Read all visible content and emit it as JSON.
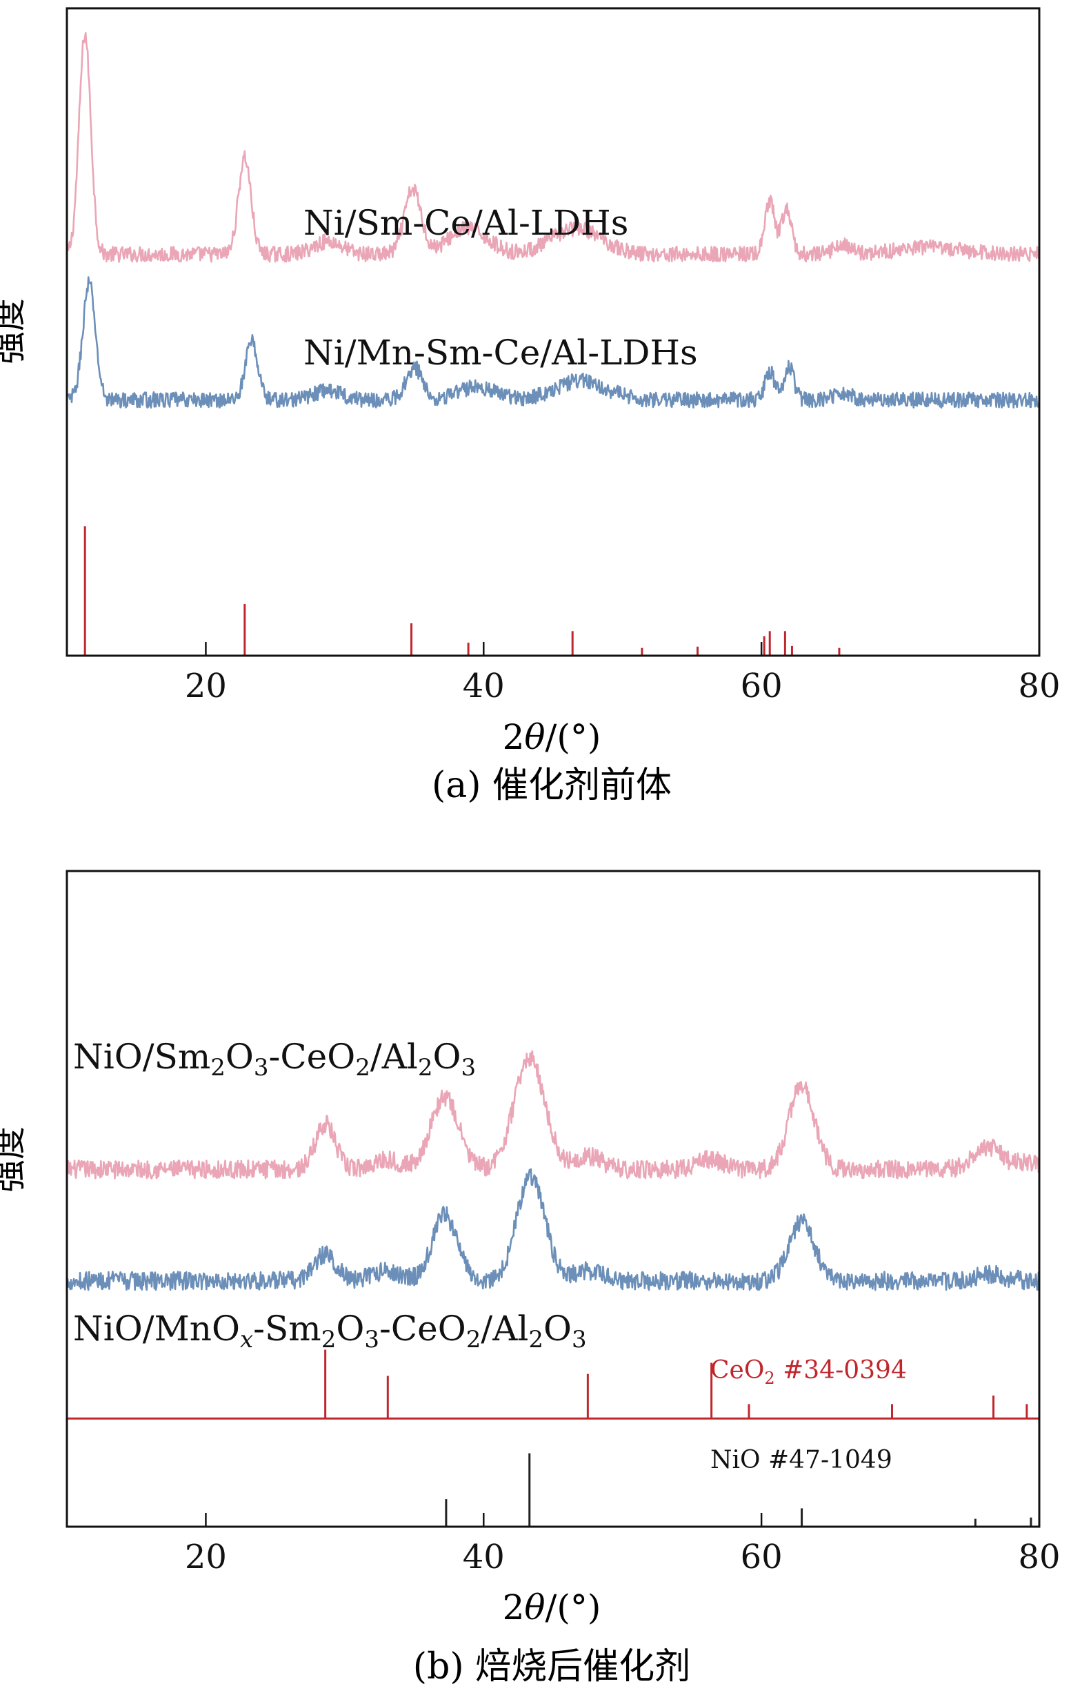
{
  "chart_data": [
    {
      "type": "line",
      "panel_caption": "(a) 催化剂前体",
      "xlabel_prefix": "2",
      "xlabel_theta": "θ",
      "xlabel_suffix": "/(°)",
      "ylabel": "强度",
      "xlim": [
        10,
        80
      ],
      "xticks": [
        20,
        40,
        60,
        80
      ],
      "xtick_labels": [
        "20",
        "40",
        "60",
        "80"
      ],
      "y_ticks_shown": false,
      "grid": false,
      "series": [
        {
          "name": "Ni/Sm-Ce/Al-LDHs",
          "color": "#eaa6b6",
          "baseline": 0.62,
          "noise": 0.012,
          "label_at_x": 29.5,
          "peaks": [
            {
              "x": 11.3,
              "height": 0.34,
              "width": 0.42
            },
            {
              "x": 22.8,
              "height": 0.15,
              "width": 0.45
            },
            {
              "x": 28.8,
              "height": 0.02,
              "width": 1.0
            },
            {
              "x": 34.9,
              "height": 0.1,
              "width": 0.6
            },
            {
              "x": 38.9,
              "height": 0.04,
              "width": 1.4
            },
            {
              "x": 46.7,
              "height": 0.04,
              "width": 1.8
            },
            {
              "x": 60.6,
              "height": 0.08,
              "width": 0.35
            },
            {
              "x": 61.8,
              "height": 0.07,
              "width": 0.35
            },
            {
              "x": 65.8,
              "height": 0.015,
              "width": 0.6
            },
            {
              "x": 72.0,
              "height": 0.01,
              "width": 2.5
            }
          ]
        },
        {
          "name": "Ni/Mn-Sm-Ce/Al-LDHs",
          "color": "#6b8fb8",
          "baseline": 0.395,
          "noise": 0.012,
          "label_at_x": 29.5,
          "peaks": [
            {
              "x": 11.6,
              "height": 0.18,
              "width": 0.45
            },
            {
              "x": 23.3,
              "height": 0.09,
              "width": 0.45
            },
            {
              "x": 28.8,
              "height": 0.015,
              "width": 1.0
            },
            {
              "x": 35.0,
              "height": 0.05,
              "width": 0.6
            },
            {
              "x": 39.5,
              "height": 0.02,
              "width": 1.4
            },
            {
              "x": 47.0,
              "height": 0.03,
              "width": 1.8
            },
            {
              "x": 60.6,
              "height": 0.045,
              "width": 0.35
            },
            {
              "x": 62.0,
              "height": 0.05,
              "width": 0.35
            },
            {
              "x": 65.8,
              "height": 0.012,
              "width": 0.6
            }
          ]
        }
      ],
      "reference_patterns": [
        {
          "name": "",
          "color": "#c0272d",
          "baseline": 0,
          "sticks": [
            {
              "x": 11.3,
              "intensity": 0.2
            },
            {
              "x": 22.8,
              "intensity": 0.08
            },
            {
              "x": 34.8,
              "intensity": 0.05
            },
            {
              "x": 38.9,
              "intensity": 0.02
            },
            {
              "x": 46.4,
              "intensity": 0.038
            },
            {
              "x": 51.4,
              "intensity": 0.012
            },
            {
              "x": 55.4,
              "intensity": 0.014
            },
            {
              "x": 60.2,
              "intensity": 0.03
            },
            {
              "x": 60.6,
              "intensity": 0.038
            },
            {
              "x": 61.7,
              "intensity": 0.038
            },
            {
              "x": 62.2,
              "intensity": 0.015
            },
            {
              "x": 65.6,
              "intensity": 0.012
            }
          ]
        }
      ]
    },
    {
      "type": "line",
      "panel_caption": "(b) 焙烧后催化剂",
      "xlabel_prefix": "2",
      "xlabel_theta": "θ",
      "xlabel_suffix": "/(°)",
      "ylabel": "强度",
      "xlim": [
        10,
        80
      ],
      "xticks": [
        20,
        40,
        60,
        80
      ],
      "xtick_labels": [
        "20",
        "40",
        "60",
        "80"
      ],
      "y_ticks_shown": false,
      "grid": false,
      "series": [
        {
          "name": "NiO/Sm2O3-CeO2/Al2O3",
          "color": "#eaa6b6",
          "baseline": 0.545,
          "noise": 0.014,
          "peaks": [
            {
              "x": 28.6,
              "height": 0.07,
              "width": 0.7
            },
            {
              "x": 33.0,
              "height": 0.015,
              "width": 1.0
            },
            {
              "x": 37.2,
              "height": 0.11,
              "width": 1.0
            },
            {
              "x": 43.3,
              "height": 0.17,
              "width": 1.1
            },
            {
              "x": 47.5,
              "height": 0.02,
              "width": 1.0
            },
            {
              "x": 56.3,
              "height": 0.015,
              "width": 1.0
            },
            {
              "x": 62.9,
              "height": 0.13,
              "width": 0.9
            },
            {
              "x": 76.3,
              "height": 0.035,
              "width": 1.0
            },
            {
              "x": 79.1,
              "height": 0.01,
              "width": 0.8
            }
          ]
        },
        {
          "name": "NiO/MnOx-Sm2O3-CeO2/Al2O3",
          "color": "#6b8fb8",
          "baseline": 0.375,
          "noise": 0.014,
          "peaks": [
            {
              "x": 28.6,
              "height": 0.04,
              "width": 0.8
            },
            {
              "x": 33.0,
              "height": 0.015,
              "width": 1.0
            },
            {
              "x": 37.2,
              "height": 0.1,
              "width": 0.9
            },
            {
              "x": 43.4,
              "height": 0.16,
              "width": 1.0
            },
            {
              "x": 47.5,
              "height": 0.015,
              "width": 1.0
            },
            {
              "x": 62.9,
              "height": 0.09,
              "width": 0.9
            },
            {
              "x": 76.5,
              "height": 0.01,
              "width": 1.0
            }
          ]
        }
      ],
      "reference_patterns": [
        {
          "name": "CeO2 #34-0394",
          "color": "#c0272d",
          "baseline": 0.165,
          "sticks": [
            {
              "x": 28.6,
              "intensity": 0.105
            },
            {
              "x": 33.1,
              "intensity": 0.065
            },
            {
              "x": 47.5,
              "intensity": 0.068
            },
            {
              "x": 56.4,
              "intensity": 0.085
            },
            {
              "x": 59.1,
              "intensity": 0.022
            },
            {
              "x": 69.4,
              "intensity": 0.022
            },
            {
              "x": 76.7,
              "intensity": 0.035
            },
            {
              "x": 79.1,
              "intensity": 0.022
            }
          ]
        },
        {
          "name": "NiO #47-1049",
          "color": "#222222",
          "baseline": 0,
          "sticks": [
            {
              "x": 37.3,
              "intensity": 0.042
            },
            {
              "x": 43.3,
              "intensity": 0.112
            },
            {
              "x": 62.9,
              "intensity": 0.028
            },
            {
              "x": 75.4,
              "intensity": 0.012
            },
            {
              "x": 79.4,
              "intensity": 0.014
            }
          ]
        }
      ]
    }
  ]
}
